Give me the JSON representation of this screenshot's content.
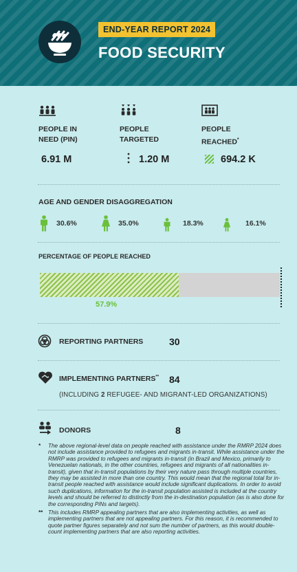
{
  "header": {
    "badge": "END-YEAR REPORT 2024",
    "title": "FOOD SECURITY",
    "logo_icon": "food-bowl-icon",
    "bg_color": "#0f6f78",
    "badge_color": "#f2c230"
  },
  "stats": [
    {
      "label_line1": "PEOPLE IN",
      "label_line2": "NEED (PIN)",
      "value": "6.91 M",
      "icon": "people-in-need-icon"
    },
    {
      "label_line1": "PEOPLE",
      "label_line2": "TARGETED",
      "value": "1.20 M",
      "icon": "people-targeted-icon"
    },
    {
      "label_line1": "PEOPLE",
      "label_line2": "REACHED",
      "label_mark": "*",
      "value": "694.2 K",
      "icon": "people-reached-icon"
    }
  ],
  "age_gender": {
    "title": "AGE AND GENDER DISAGGREGATION",
    "groups": [
      {
        "icon": "adult-man-icon",
        "pct": "30.6%"
      },
      {
        "icon": "adult-woman-icon",
        "pct": "35.0%"
      },
      {
        "icon": "boy-icon",
        "pct": "18.3%"
      },
      {
        "icon": "girl-icon",
        "pct": "16.1%"
      }
    ],
    "icon_color": "#6abf3b"
  },
  "reached": {
    "title": "PERCENTAGE OF PEOPLE REACHED",
    "percent_label": "57.9%",
    "fraction": 0.579
  },
  "partners": {
    "reporting_label": "REPORTING PARTNERS",
    "reporting_value": "30",
    "implementing_label": "IMPLEMENTING PARTNERS",
    "implementing_mark": "**",
    "implementing_value": "84",
    "including_pre": "(INCLUDING ",
    "including_num": "2",
    "including_post": " REFUGEE- AND MIGRANT-LED ORGANIZATIONS)",
    "donors_label": "DONORS",
    "donors_value": "8"
  },
  "footnotes": [
    {
      "mark": "*",
      "text": "The above regional-level data on people reached with assistance under the RMRP 2024 does not include assistance provided to refugees and migrants in-transit. While assistance under the RMRP was provided to refugees and migrants in-transit (in Brazil and Mexico, primarily to Venezuelan nationals, in the other countries, refugees and migrants of all nationalities in-transit), given that in-transit populations by their very nature pass through multiple countries, they may be assisted in more than one country. This would mean that the regional total for in-transit people reached with assistance would include significant duplications. In order to avoid such duplications, information for the in-transit population assisted is included at the country levels and should be referred to distinctly from the in-destination population (as is also done for the corresponding PiNs and targets)."
    },
    {
      "mark": "**",
      "text": "This includes RMRP appealing partners that are also implementing activities, as well as implementing partners that are not appealing partners. For this reason, it is recommended to quote partner figures separately and not sum the number of partners, as this would double-count implementing partners that are also reporting activities."
    }
  ]
}
